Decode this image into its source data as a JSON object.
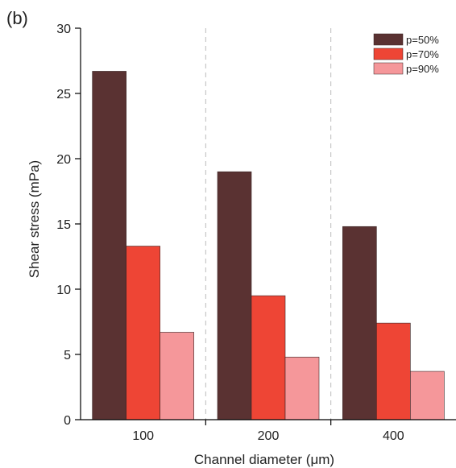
{
  "panel_label": "(b)",
  "chart_data": {
    "type": "bar",
    "categories": [
      "100",
      "200",
      "400"
    ],
    "series": [
      {
        "name": "p=50%",
        "values": [
          26.7,
          19.0,
          14.8
        ],
        "color": "#5a3232"
      },
      {
        "name": "p=70%",
        "values": [
          13.3,
          9.5,
          7.4
        ],
        "color": "#ee4535"
      },
      {
        "name": "p=90%",
        "values": [
          6.7,
          4.8,
          3.7
        ],
        "color": "#f5979a"
      }
    ],
    "xlabel": "Channel diameter (μm)",
    "ylabel": "Shear stress (mPa)",
    "ylim": [
      0,
      30
    ],
    "yticks": [
      "0",
      "5",
      "10",
      "15",
      "20",
      "25",
      "30"
    ],
    "legend_position": "top-right",
    "category_separators": "dashed",
    "grid": false
  }
}
